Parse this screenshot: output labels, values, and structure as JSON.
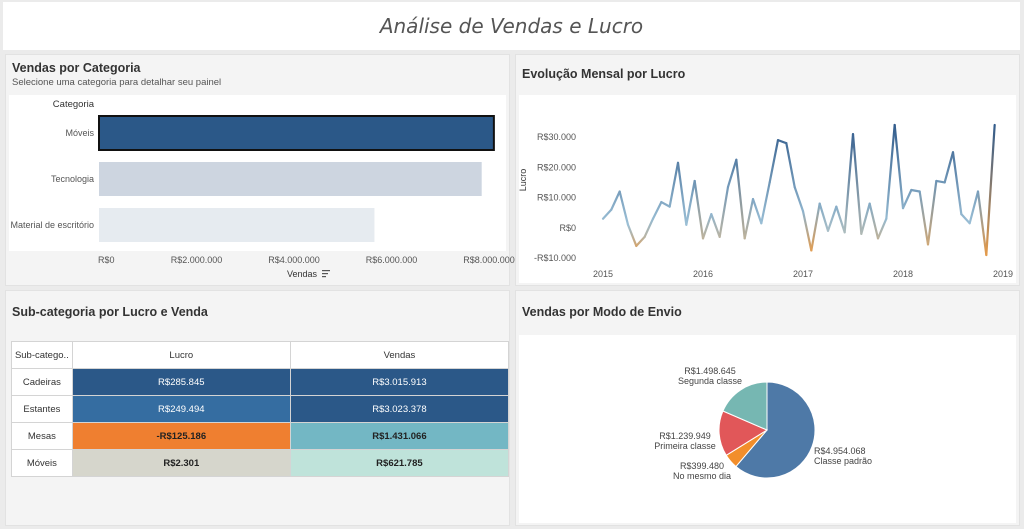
{
  "dashboard": {
    "title": "Análise de Vendas e Lucro"
  },
  "panels": {
    "category": {
      "title": "Vendas por Categoria",
      "subtitle": "Selecione uma categoria para detalhar seu painel"
    },
    "monthly": {
      "title": "Evolução Mensal por Lucro"
    },
    "subcat": {
      "title": "Sub-categoria por Lucro e Venda"
    },
    "shipping": {
      "title": "Vendas por Modo de Envio"
    }
  },
  "chart_data": [
    {
      "type": "bar",
      "orientation": "horizontal",
      "category_header": "Categoria",
      "categories": [
        "Móveis",
        "Tecnologia",
        "Material de escritório"
      ],
      "values": [
        8100000,
        7850000,
        5650000
      ],
      "colors": [
        "#2b5888",
        "#cdd5e0",
        "#e6ebf0"
      ],
      "selected": "Móveis",
      "xlabel": "Vendas",
      "xlim": [
        0,
        8000000
      ],
      "xticks": [
        {
          "v": 0,
          "label": "R$0"
        },
        {
          "v": 2000000,
          "label": "R$2.000.000"
        },
        {
          "v": 4000000,
          "label": "R$4.000.000"
        },
        {
          "v": 6000000,
          "label": "R$6.000.000"
        },
        {
          "v": 8000000,
          "label": "R$8.000.000"
        }
      ]
    },
    {
      "type": "line",
      "ylabel": "Lucro",
      "ylim": [
        -10000,
        35000
      ],
      "xlim": [
        2015.0,
        2019.0
      ],
      "yticks": [
        {
          "v": 30000,
          "label": "R$30.000"
        },
        {
          "v": 20000,
          "label": "R$20.000"
        },
        {
          "v": 10000,
          "label": "R$10.000"
        },
        {
          "v": 0,
          "label": "R$0"
        },
        {
          "v": -10000,
          "label": "-R$10.000"
        }
      ],
      "xticks": [
        {
          "v": 2015,
          "label": "2015"
        },
        {
          "v": 2016,
          "label": "2016"
        },
        {
          "v": 2017,
          "label": "2017"
        },
        {
          "v": 2018,
          "label": "2018"
        },
        {
          "v": 2019,
          "label": "2019"
        }
      ],
      "x": [
        "2015-01",
        "2015-02",
        "2015-03",
        "2015-04",
        "2015-05",
        "2015-06",
        "2015-07",
        "2015-08",
        "2015-09",
        "2015-10",
        "2015-11",
        "2015-12",
        "2016-01",
        "2016-02",
        "2016-03",
        "2016-04",
        "2016-05",
        "2016-06",
        "2016-07",
        "2016-08",
        "2016-09",
        "2016-10",
        "2016-11",
        "2016-12",
        "2017-01",
        "2017-02",
        "2017-03",
        "2017-04",
        "2017-05",
        "2017-06",
        "2017-07",
        "2017-08",
        "2017-09",
        "2017-10",
        "2017-11",
        "2017-12",
        "2018-01",
        "2018-02",
        "2018-03",
        "2018-04",
        "2018-05",
        "2018-06",
        "2018-07",
        "2018-08",
        "2018-09",
        "2018-10",
        "2018-11",
        "2018-12"
      ],
      "values": [
        3000,
        6000,
        12000,
        1000,
        -6000,
        -3000,
        3000,
        8500,
        7000,
        21500,
        1000,
        15500,
        -3500,
        4500,
        -3000,
        13500,
        22500,
        -3500,
        9500,
        1500,
        15000,
        29000,
        28000,
        13500,
        5500,
        -7500,
        8000,
        -1000,
        7000,
        -1500,
        31000,
        -2000,
        8000,
        -3500,
        3000,
        34000,
        6500,
        12500,
        12000,
        -5500,
        15500,
        15000,
        25000,
        4500,
        1500,
        12000,
        -9000,
        34000
      ],
      "color_neg": "#e49b4c",
      "color_low": "#9fc3d8",
      "color_high": "#325c8c"
    },
    {
      "type": "table",
      "columns": [
        "Sub-catego..",
        "Lucro",
        "Vendas"
      ],
      "rows": [
        {
          "label": "Cadeiras",
          "lucro": "R$285.845",
          "vendas": "R$3.015.913",
          "lucro_bg": "#2b5888",
          "lucro_fg": "#ffffff",
          "vendas_bg": "#2b5888",
          "vendas_fg": "#ffffff"
        },
        {
          "label": "Estantes",
          "lucro": "R$249.494",
          "vendas": "R$3.023.378",
          "lucro_bg": "#356da1",
          "lucro_fg": "#ffffff",
          "vendas_bg": "#2b5888",
          "vendas_fg": "#ffffff"
        },
        {
          "label": "Mesas",
          "lucro": "-R$125.186",
          "vendas": "R$1.431.066",
          "lucro_bg": "#ef7f30",
          "lucro_fg": "#222222",
          "vendas_bg": "#73b7c4",
          "vendas_fg": "#222222"
        },
        {
          "label": "Móveis",
          "lucro": "R$2.301",
          "vendas": "R$621.785",
          "lucro_bg": "#d6d6cc",
          "lucro_fg": "#222222",
          "vendas_bg": "#bfe3da",
          "vendas_fg": "#222222"
        }
      ]
    },
    {
      "type": "pie",
      "slices": [
        {
          "name": "Classe padrão",
          "value": 4954068,
          "value_label": "R$4.954.068",
          "color": "#4e79a7"
        },
        {
          "name": "No mesmo dia",
          "value": 399480,
          "value_label": "R$399.480",
          "color": "#f28e2b"
        },
        {
          "name": "Primeira classe",
          "value": 1239949,
          "value_label": "R$1.239.949",
          "color": "#e15759"
        },
        {
          "name": "Segunda classe",
          "value": 1498645,
          "value_label": "R$1.498.645",
          "color": "#76b7b2"
        }
      ]
    }
  ]
}
